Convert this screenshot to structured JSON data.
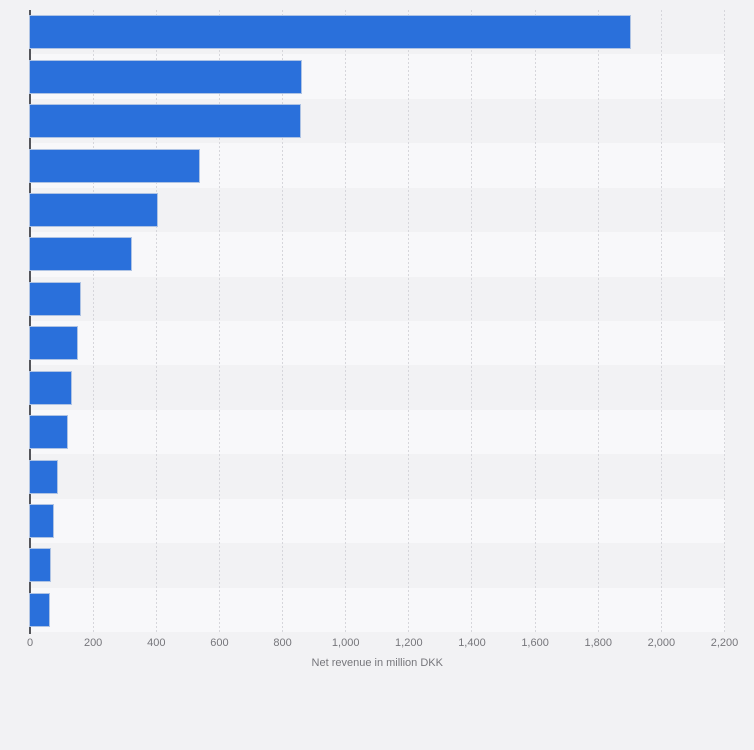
{
  "chart_data": {
    "type": "bar",
    "orientation": "horizontal",
    "title": "",
    "xlabel": "Net revenue in million DKK",
    "ylabel": "",
    "categories": [
      "",
      "",
      "",
      "",
      "",
      "",
      "",
      "",
      "",
      "",
      "",
      "",
      "",
      ""
    ],
    "values": [
      1900,
      860,
      856,
      534,
      403,
      320,
      159,
      150,
      131,
      118,
      84,
      73,
      62,
      59
    ],
    "xlim": [
      0,
      2200
    ],
    "x_ticks": [
      0,
      200,
      400,
      600,
      800,
      1000,
      1200,
      1400,
      1600,
      1800,
      2000,
      2200
    ],
    "x_tick_labels": [
      "0",
      "200",
      "400",
      "600",
      "800",
      "1,000",
      "1,200",
      "1,400",
      "1,600",
      "1,800",
      "2,000",
      "2,200"
    ],
    "grid": "vertical-dotted",
    "legend": "none",
    "row_striping": "alternating"
  },
  "colors": {
    "page_background": "#f2f2f4",
    "band_light": "#f8f8fa",
    "bar_fill": "#2a70db",
    "bar_outline": "#aec3e4",
    "gridline": "#d6d6db",
    "axis_line": "#54555a",
    "tick_text": "#76767b"
  }
}
